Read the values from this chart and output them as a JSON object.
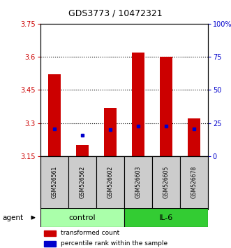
{
  "title": "GDS3773 / 10472321",
  "samples": [
    "GSM526561",
    "GSM526562",
    "GSM526602",
    "GSM526603",
    "GSM526605",
    "GSM526678"
  ],
  "bar_bottoms": [
    3.15,
    3.15,
    3.15,
    3.15,
    3.15,
    3.15
  ],
  "bar_tops": [
    3.52,
    3.2,
    3.37,
    3.62,
    3.6,
    3.32
  ],
  "percentile_values": [
    3.275,
    3.245,
    3.27,
    3.285,
    3.285,
    3.275
  ],
  "ylim": [
    3.15,
    3.75
  ],
  "yticks": [
    3.15,
    3.3,
    3.45,
    3.6,
    3.75
  ],
  "ytick_labels": [
    "3.15",
    "3.3",
    "3.45",
    "3.6",
    "3.75"
  ],
  "right_yticks_pct": [
    0,
    25,
    50,
    75,
    100
  ],
  "right_ytick_labels": [
    "0",
    "25",
    "50",
    "75",
    "100%"
  ],
  "bar_color": "#cc0000",
  "percentile_color": "#0000cc",
  "left_tick_color": "#cc0000",
  "right_tick_color": "#0000cc",
  "control_color": "#aaffaa",
  "il6_color": "#33cc33",
  "sample_box_color": "#cccccc",
  "bar_width": 0.45,
  "title_fontsize": 9,
  "tick_fontsize": 7,
  "sample_fontsize": 5.5,
  "group_fontsize": 8,
  "legend_fontsize": 6.5
}
